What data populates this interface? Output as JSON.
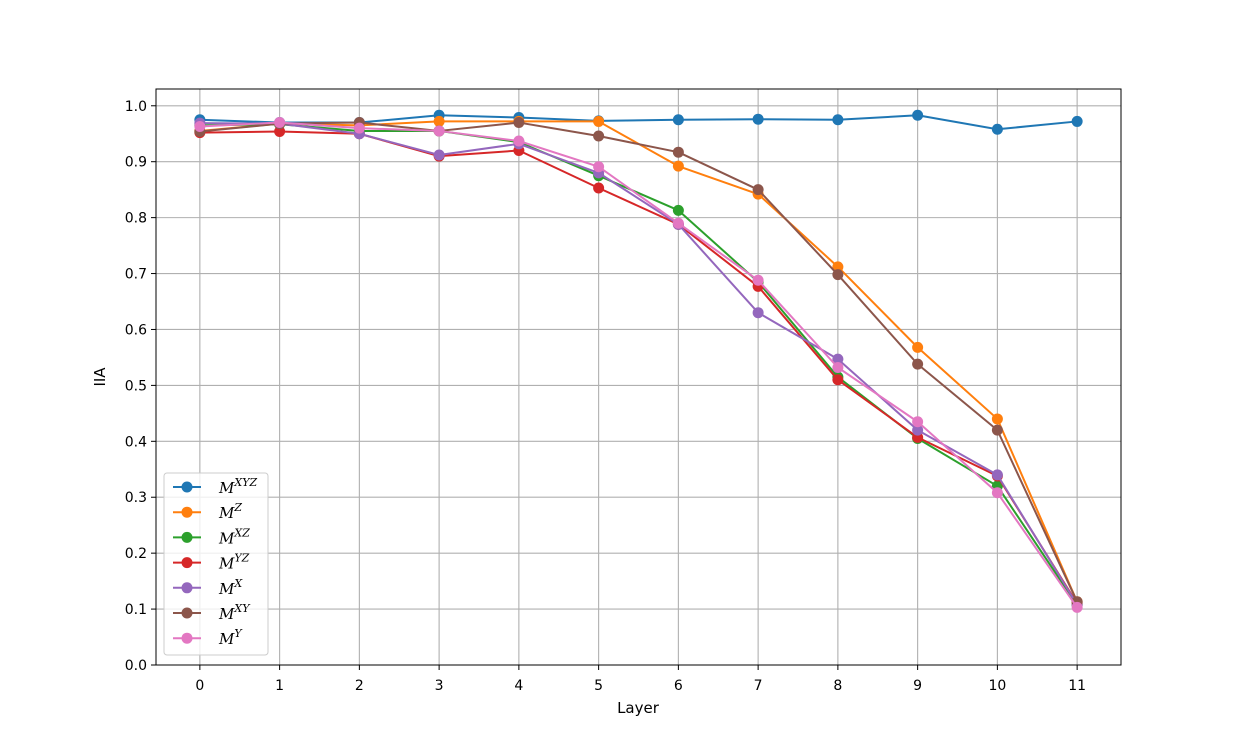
{
  "chart_data": {
    "type": "line",
    "xlabel": "Layer",
    "ylabel": "IIA",
    "x": [
      0,
      1,
      2,
      3,
      4,
      5,
      6,
      7,
      8,
      9,
      10,
      11
    ],
    "xlim": [
      -0.55,
      11.55
    ],
    "ylim": [
      0.0,
      1.03
    ],
    "yticks": [
      0.0,
      0.1,
      0.2,
      0.3,
      0.4,
      0.5,
      0.6,
      0.7,
      0.8,
      0.9,
      1.0
    ],
    "ytick_labels": [
      "0.0",
      "0.1",
      "0.2",
      "0.3",
      "0.4",
      "0.5",
      "0.6",
      "0.7",
      "0.8",
      "0.9",
      "1.0"
    ],
    "xtick_labels": [
      "0",
      "1",
      "2",
      "3",
      "4",
      "5",
      "6",
      "7",
      "8",
      "9",
      "10",
      "11"
    ],
    "grid": true,
    "legend_position": "lower-left",
    "series": [
      {
        "name": "M^XYZ",
        "base": "M",
        "sup": "XYZ",
        "color": "#1f77b4",
        "values": [
          0.975,
          0.97,
          0.97,
          0.983,
          0.979,
          0.973,
          0.975,
          0.976,
          0.975,
          0.983,
          0.958,
          0.972
        ]
      },
      {
        "name": "M^Z",
        "base": "M",
        "sup": "Z",
        "color": "#ff7f0e",
        "values": [
          0.955,
          0.968,
          0.965,
          0.972,
          0.972,
          0.972,
          0.892,
          0.842,
          0.712,
          0.568,
          0.44,
          0.113
        ]
      },
      {
        "name": "M^XZ",
        "base": "M",
        "sup": "XZ",
        "color": "#2ca02c",
        "values": [
          0.965,
          0.967,
          0.955,
          0.955,
          0.935,
          0.875,
          0.813,
          0.685,
          0.515,
          0.405,
          0.32,
          0.107
        ]
      },
      {
        "name": "M^YZ",
        "base": "M",
        "sup": "YZ",
        "color": "#d62728",
        "values": [
          0.952,
          0.954,
          0.95,
          0.91,
          0.92,
          0.853,
          0.788,
          0.677,
          0.51,
          0.407,
          0.338,
          0.11
        ]
      },
      {
        "name": "M^X",
        "base": "M",
        "sup": "X",
        "color": "#9467bd",
        "values": [
          0.969,
          0.968,
          0.95,
          0.912,
          0.932,
          0.88,
          0.788,
          0.63,
          0.547,
          0.42,
          0.34,
          0.108
        ]
      },
      {
        "name": "M^XY",
        "base": "M",
        "sup": "XY",
        "color": "#8c564b",
        "values": [
          0.954,
          0.968,
          0.97,
          0.955,
          0.97,
          0.946,
          0.917,
          0.85,
          0.698,
          0.538,
          0.42,
          0.113
        ]
      },
      {
        "name": "M^Y",
        "base": "M",
        "sup": "Y",
        "color": "#e377c2",
        "values": [
          0.963,
          0.97,
          0.96,
          0.955,
          0.937,
          0.891,
          0.79,
          0.688,
          0.532,
          0.435,
          0.308,
          0.103
        ]
      }
    ]
  }
}
